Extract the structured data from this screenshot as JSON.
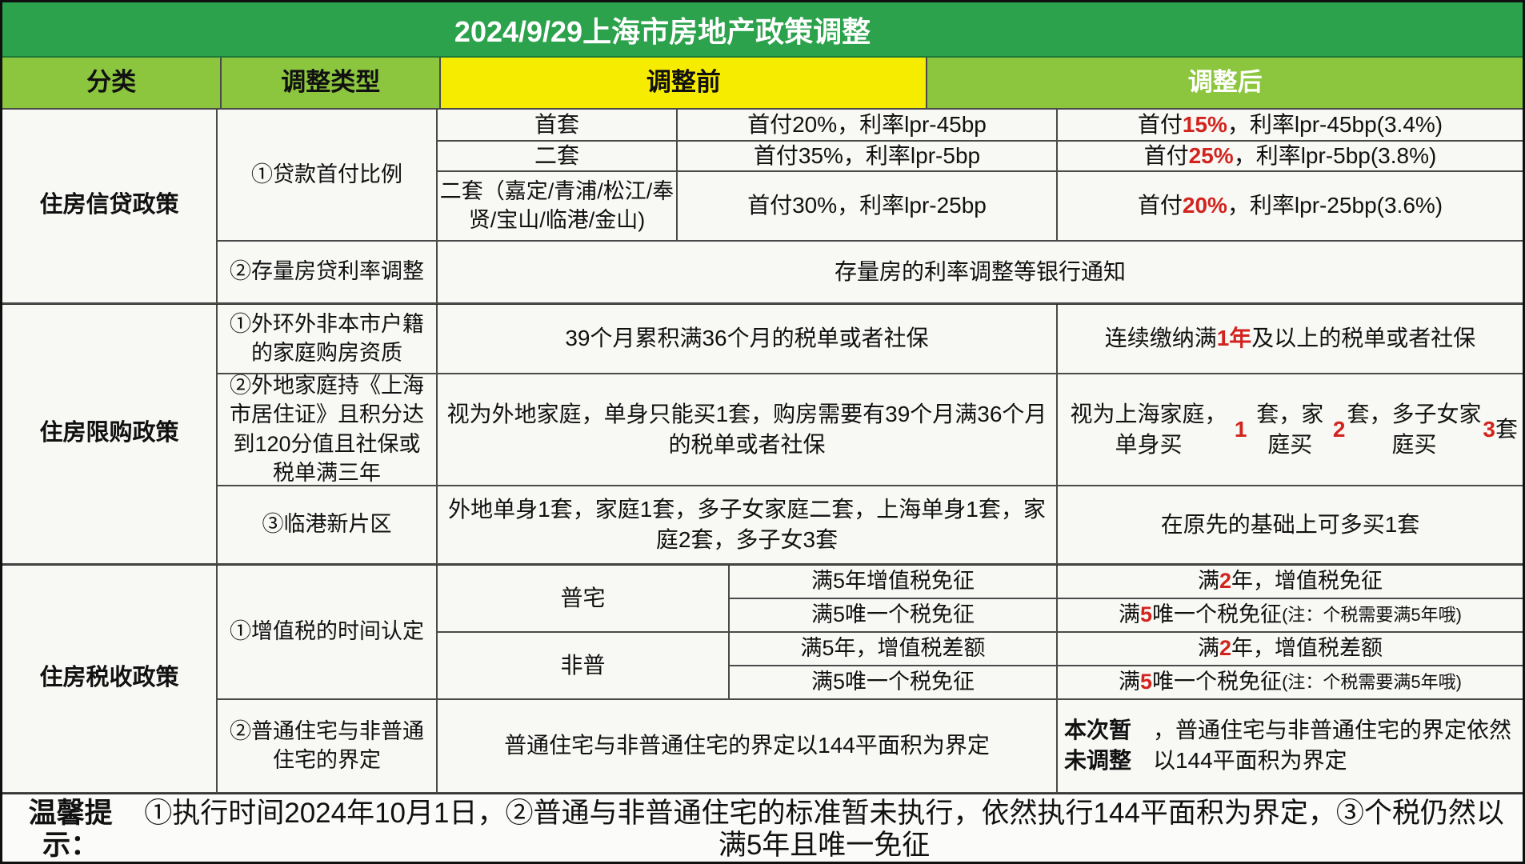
{
  "title": "2024/9/29上海市房地产政策调整",
  "header": {
    "category": "分类",
    "type": "调整类型",
    "before": "调整前",
    "after": "调整后"
  },
  "credit": {
    "category": "住房信贷政策",
    "downpayment": {
      "label": "①贷款首付比例",
      "rows": [
        {
          "tier": "首套",
          "before": "首付20%，利率lpr-45bp",
          "after": [
            {
              "t": "首付"
            },
            {
              "t": "15%",
              "red": true
            },
            {
              "t": "，利率lpr-45bp(3.4%)"
            }
          ]
        },
        {
          "tier": "二套",
          "before": "首付35%，利率lpr-5bp",
          "after": [
            {
              "t": "首付"
            },
            {
              "t": "25%",
              "red": true
            },
            {
              "t": "，利率lpr-5bp(3.8%)"
            }
          ]
        },
        {
          "tier": "二套（嘉定/青浦/松江/奉贤/宝山/临港/金山)",
          "before": "首付30%，利率lpr-25bp",
          "after": [
            {
              "t": "首付"
            },
            {
              "t": "20%",
              "red": true
            },
            {
              "t": "，利率lpr-25bp(3.6%)"
            }
          ]
        }
      ]
    },
    "existing": {
      "label": "②存量房贷利率调整",
      "note": "存量房的利率调整等银行通知"
    }
  },
  "purchase": {
    "category": "住房限购政策",
    "rows": [
      {
        "label": "①外环外非本市户籍的家庭购房资质",
        "before": "39个月累积满36个月的税单或者社保",
        "after": [
          {
            "t": "连续缴纳满"
          },
          {
            "t": "1年",
            "red": true
          },
          {
            "t": "及以上的税单或者社保"
          }
        ]
      },
      {
        "label": "②外地家庭持《上海市居住证》且积分达到120分值且社保或税单满三年",
        "before": "视为外地家庭，单身只能买1套，购房需要有39个月满36个月的税单或者社保",
        "after": [
          {
            "t": "视为上海家庭，单身买"
          },
          {
            "t": "1",
            "red": true
          },
          {
            "t": "套，家庭买"
          },
          {
            "t": "2",
            "red": true
          },
          {
            "t": "套，多子女家庭买"
          },
          {
            "t": "3",
            "red": true
          },
          {
            "t": "套"
          }
        ]
      },
      {
        "label": "③临港新片区",
        "before": "外地单身1套，家庭1套，多子女家庭二套，上海单身1套，家庭2套，多子女3套",
        "after": [
          {
            "t": "在原先的基础上可多买1套"
          }
        ]
      }
    ]
  },
  "tax": {
    "category": "住房税收政策",
    "vat_label": "①增值税的时间认定",
    "groups": [
      {
        "type": "普宅",
        "rows": [
          {
            "before": "满5年增值税免征",
            "after": [
              {
                "t": "满"
              },
              {
                "t": "2",
                "red": true
              },
              {
                "t": "年，增值税免征"
              }
            ]
          },
          {
            "before": "满5唯一个税免征",
            "after": [
              {
                "t": "满"
              },
              {
                "t": "5",
                "red": true
              },
              {
                "t": "唯一个税免征"
              },
              {
                "t": " (注：个税需要满5年哦)",
                "small": true
              }
            ]
          }
        ]
      },
      {
        "type": "非普",
        "rows": [
          {
            "before": "满5年，增值税差额",
            "after": [
              {
                "t": "满"
              },
              {
                "t": "2",
                "red": true
              },
              {
                "t": "年，增值税差额"
              }
            ]
          },
          {
            "before": "满5唯一个税免征",
            "after": [
              {
                "t": "满"
              },
              {
                "t": "5",
                "red": true
              },
              {
                "t": "唯一个税免征"
              },
              {
                "t": " (注：个税需要满5年哦)",
                "small": true
              }
            ]
          }
        ]
      }
    ],
    "definition": {
      "label": "②普通住宅与非普通住宅的界定",
      "before": "普通住宅与非普通住宅的界定以144平面积为界定",
      "after": [
        {
          "t": "本次暂未调整",
          "b": true
        },
        {
          "t": "，普通住宅与非普通住宅的界定依然以144平面积为界定"
        }
      ]
    }
  },
  "footer": [
    {
      "t": "温馨提示：",
      "b": true
    },
    {
      "t": "①执行时间2024年10月1日，②普通与非普通住宅的标准暂未执行，依然执行144平面积为界定，③个税仍然以满5年且唯一免征"
    }
  ],
  "colors": {
    "title_bg": "#2ca24c",
    "header_green": "#8cc63f",
    "header_yellow": "#f6ec00",
    "accent_red": "#d2241e"
  }
}
